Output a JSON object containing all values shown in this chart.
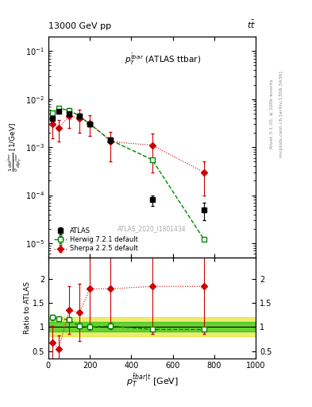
{
  "title_top": "13000 GeV pp",
  "title_right": "t$\\bar{t}$",
  "panel_title": "$p_T^{\\bar{t}bar}$ (ATLAS ttbar)",
  "ylabel_main": "$\\frac{1}{\\sigma}\\frac{d\\sigma^{\\bar{t}bar}}{dp^{\\bar{t}bar}_T}$ [1/GeV]",
  "ylabel_ratio": "Ratio to ATLAS",
  "xlabel": "$p^{\\bar{t}bar|t}_T$ [GeV]",
  "watermark": "ATLAS_2020_I1801434",
  "xlim": [
    0,
    1000
  ],
  "ylim_main": [
    5e-06,
    0.2
  ],
  "ylim_ratio": [
    0.35,
    2.45
  ],
  "atlas_x": [
    20,
    50,
    100,
    150,
    200,
    300,
    500,
    750
  ],
  "atlas_y": [
    0.004,
    0.0055,
    0.005,
    0.0045,
    0.003,
    0.0014,
    8e-05,
    5e-05
  ],
  "atlas_yerr_lo": [
    0.0004,
    0.0004,
    0.0004,
    0.0004,
    0.0003,
    0.0002,
    2e-05,
    2e-05
  ],
  "atlas_yerr_hi": [
    0.0004,
    0.0004,
    0.0004,
    0.0004,
    0.0003,
    0.0002,
    2e-05,
    2e-05
  ],
  "herwig_x": [
    20,
    50,
    100,
    150,
    200,
    300,
    500,
    750
  ],
  "herwig_y": [
    0.0052,
    0.0065,
    0.0058,
    0.0045,
    0.003,
    0.0014,
    0.00055,
    1.2e-05
  ],
  "herwig_yerr_lo": [
    0.0002,
    0.0002,
    0.0002,
    0.0002,
    0.0002,
    0.0001,
    3e-05,
    1e-06
  ],
  "herwig_yerr_hi": [
    0.0002,
    0.0002,
    0.0002,
    0.0002,
    0.0002,
    0.0001,
    3e-05,
    1e-06
  ],
  "sherpa_x": [
    20,
    50,
    100,
    150,
    200,
    300,
    500,
    750
  ],
  "sherpa_y": [
    0.003,
    0.0025,
    0.0045,
    0.004,
    0.0032,
    0.0013,
    0.0011,
    0.0003
  ],
  "sherpa_yerr_lo": [
    0.0015,
    0.0012,
    0.002,
    0.002,
    0.0015,
    0.0008,
    0.0008,
    0.0002
  ],
  "sherpa_yerr_hi": [
    0.0015,
    0.0012,
    0.002,
    0.002,
    0.0015,
    0.0008,
    0.0008,
    0.0002
  ],
  "herwig_ratio_x": [
    20,
    50,
    100,
    150,
    200,
    300,
    500,
    750
  ],
  "herwig_ratio": [
    1.2,
    1.18,
    1.15,
    1.02,
    1.0,
    1.02,
    0.95,
    0.95
  ],
  "herwig_ratio_err_lo": [
    0.06,
    0.05,
    0.05,
    0.05,
    0.06,
    0.07,
    0.04,
    0.04
  ],
  "herwig_ratio_err_hi": [
    0.06,
    0.05,
    0.05,
    0.05,
    0.06,
    0.07,
    0.04,
    0.04
  ],
  "sherpa_ratio_x": [
    20,
    50,
    100,
    150,
    200,
    300,
    500,
    750
  ],
  "sherpa_ratio": [
    0.67,
    0.55,
    1.35,
    1.3,
    1.8,
    1.8,
    1.85,
    1.85
  ],
  "sherpa_ratio_err_lo": [
    0.35,
    0.28,
    0.5,
    0.6,
    0.8,
    0.8,
    1.0,
    1.0
  ],
  "sherpa_ratio_err_hi": [
    0.35,
    0.28,
    0.5,
    0.6,
    0.8,
    0.8,
    1.0,
    1.0
  ],
  "band_yellow_lo": 0.8,
  "band_yellow_hi": 1.2,
  "band_green_lo": 0.9,
  "band_green_hi": 1.1,
  "atlas_color": "#000000",
  "herwig_color": "#008800",
  "sherpa_color": "#cc0000",
  "band_yellow": "#dddd00",
  "band_green": "#00bb00"
}
